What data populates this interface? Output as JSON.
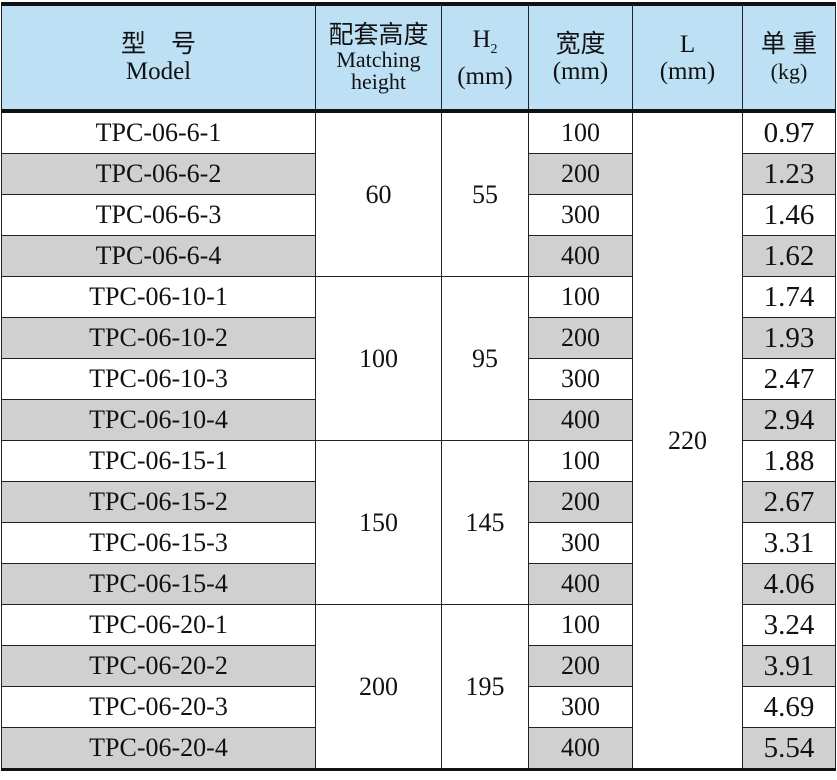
{
  "header": {
    "model_cn": "型　号",
    "model_en": "Model",
    "height_cn": "配套高度",
    "height_en": "Matching height",
    "h2": "H",
    "h2_sub": "2",
    "h2_unit": "(mm)",
    "width_cn": "宽度",
    "width_unit": "(mm)",
    "l": "L",
    "l_unit": "(mm)",
    "weight_cn": "单 重",
    "weight_unit": "(kg)"
  },
  "L_value": "220",
  "groups": [
    {
      "height": "60",
      "h2": "55",
      "rows": [
        [
          "TPC-06-6-1",
          "100",
          "0.97"
        ],
        [
          "TPC-06-6-2",
          "200",
          "1.23"
        ],
        [
          "TPC-06-6-3",
          "300",
          "1.46"
        ],
        [
          "TPC-06-6-4",
          "400",
          "1.62"
        ]
      ]
    },
    {
      "height": "100",
      "h2": "95",
      "rows": [
        [
          "TPC-06-10-1",
          "100",
          "1.74"
        ],
        [
          "TPC-06-10-2",
          "200",
          "1.93"
        ],
        [
          "TPC-06-10-3",
          "300",
          "2.47"
        ],
        [
          "TPC-06-10-4",
          "400",
          "2.94"
        ]
      ]
    },
    {
      "height": "150",
      "h2": "145",
      "rows": [
        [
          "TPC-06-15-1",
          "100",
          "1.88"
        ],
        [
          "TPC-06-15-2",
          "200",
          "2.67"
        ],
        [
          "TPC-06-15-3",
          "300",
          "3.31"
        ],
        [
          "TPC-06-15-4",
          "400",
          "4.06"
        ]
      ]
    },
    {
      "height": "200",
      "h2": "195",
      "rows": [
        [
          "TPC-06-20-1",
          "100",
          "3.24"
        ],
        [
          "TPC-06-20-2",
          "200",
          "3.91"
        ],
        [
          "TPC-06-20-3",
          "300",
          "4.69"
        ],
        [
          "TPC-06-20-4",
          "400",
          "5.54"
        ]
      ]
    }
  ]
}
